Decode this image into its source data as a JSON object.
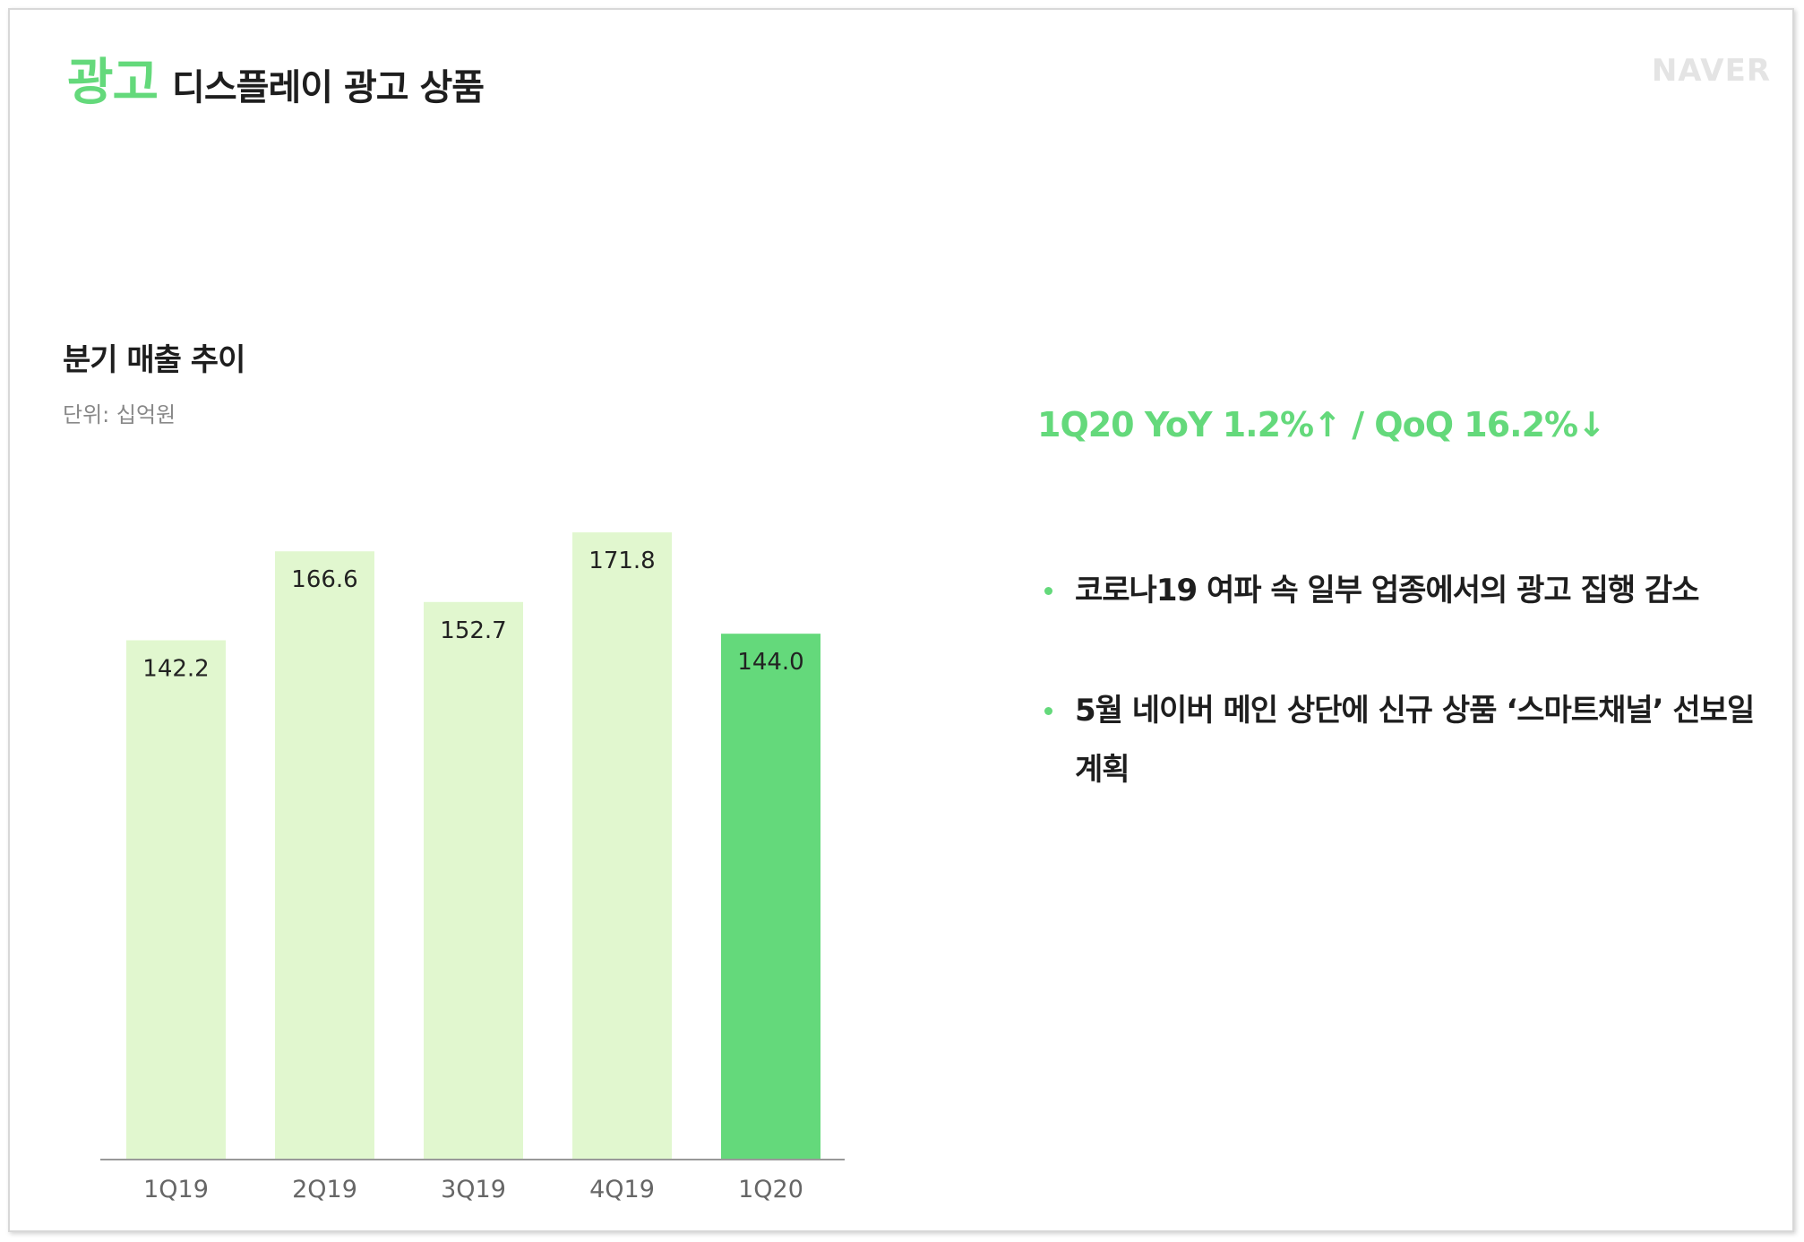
{
  "header": {
    "category": "광고",
    "title": "디스플레이 광고 상품",
    "logo": "NAVER"
  },
  "colors": {
    "accent": "#64d97b",
    "bar_light": "#e1f7cf",
    "bar_highlight": "#64d97b",
    "text_dark": "#1e1e1e",
    "axis": "#999999"
  },
  "chart_data": {
    "type": "bar",
    "title": "분기 매출 추이",
    "unit": "단위: 십억원",
    "categories": [
      "1Q19",
      "2Q19",
      "3Q19",
      "4Q19",
      "1Q20"
    ],
    "values": [
      142.2,
      166.6,
      152.7,
      171.8,
      144.0
    ],
    "value_labels": [
      "142.2",
      "166.6",
      "152.7",
      "171.8",
      "144.0"
    ],
    "highlight_index": 4,
    "ylim": [
      0,
      176
    ],
    "grid": false,
    "legend": "none"
  },
  "summary": {
    "headline": "1Q20 YoY 1.2%↑ / QoQ 16.2%↓",
    "bullets": [
      "코로나19 여파 속 일부 업종에서의 광고 집행 감소",
      "5월 네이버 메인 상단에 신규 상품 ‘스마트채널’ 선보일 계획"
    ]
  }
}
